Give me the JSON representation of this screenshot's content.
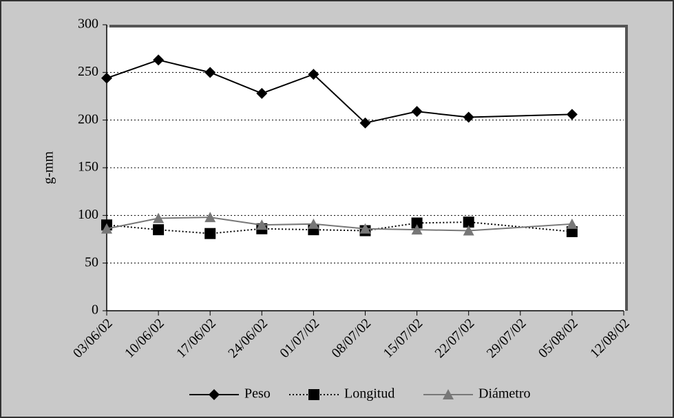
{
  "chart_data": {
    "type": "line",
    "y_label": "g-mm",
    "x": [
      "03/06/02",
      "10/06/02",
      "17/06/02",
      "24/06/02",
      "01/07/02",
      "08/07/02",
      "15/07/02",
      "22/07/02",
      "05/08/02"
    ],
    "xlim": [
      "03/06/02",
      "12/08/02"
    ],
    "xticks": [
      "03/06/02",
      "10/06/02",
      "17/06/02",
      "24/06/02",
      "01/07/02",
      "08/07/02",
      "15/07/02",
      "22/07/02",
      "29/07/02",
      "05/08/02",
      "12/08/02"
    ],
    "ylim": [
      0,
      300
    ],
    "yticks": [
      0,
      50,
      100,
      150,
      200,
      250,
      300
    ],
    "grid": true,
    "legend": "bottom",
    "series": [
      {
        "name": "Peso",
        "color": "#000000",
        "marker": "diamond",
        "line_style": "solid",
        "values": [
          244,
          263,
          250,
          228,
          248,
          197,
          209,
          203,
          206
        ]
      },
      {
        "name": "Longitud",
        "color": "#000000",
        "marker": "square",
        "line_style": "dotted",
        "values": [
          90,
          85,
          81,
          86,
          85,
          84,
          92,
          93,
          83
        ]
      },
      {
        "name": "Diámetro",
        "color": "#777777",
        "marker": "triangle",
        "line_style": "solid",
        "values": [
          86,
          97,
          98,
          90,
          91,
          86,
          85,
          84,
          91
        ]
      }
    ]
  }
}
